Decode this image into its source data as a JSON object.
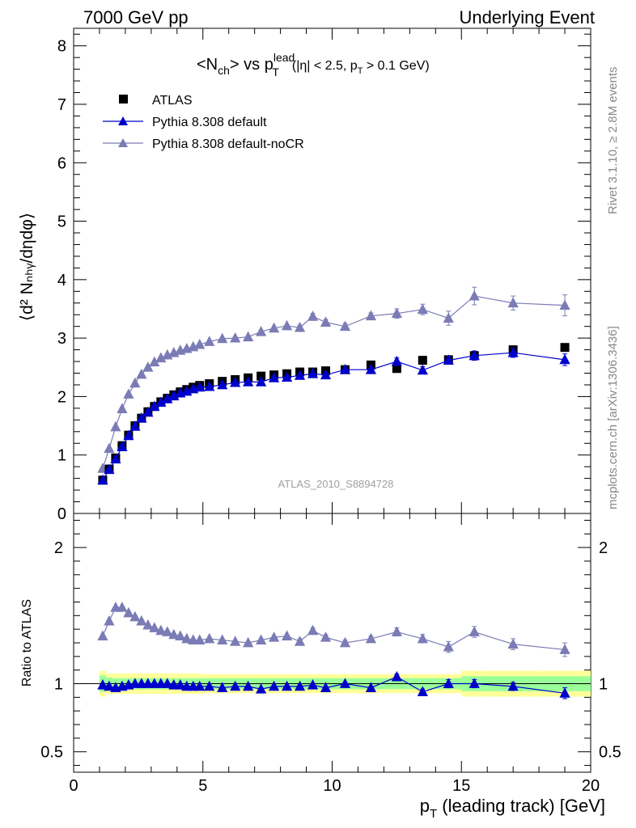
{
  "header": {
    "left": "7000 GeV pp",
    "right": "Underlying Event"
  },
  "side": {
    "rivet": "Rivet 3.1.10, ≥ 2.8M events",
    "mcplots": "mcplots.cern.ch [arXiv:1306.3436]"
  },
  "watermark": "ATLAS_2010_S8894728",
  "title": {
    "main": "<N",
    "sub_ch": "ch",
    "vs": "> vs p",
    "sup_lead": "lead",
    "sub_T": "T",
    "cuts": "(|η| < 2.5, p",
    "cuts_sub": "T",
    "cuts_end": " > 0.1 GeV)"
  },
  "legend": [
    {
      "label": "ATLAS"
    },
    {
      "label": "Pythia 8.308 default"
    },
    {
      "label": "Pythia 8.308 default-noCR"
    }
  ],
  "y_label_main": "⟨d² Nₙₕᵧ/dηdφ⟩",
  "y_label_ratio": "Ratio to ATLAS",
  "x_label": "p",
  "x_label_sub": "T",
  "x_label_rest": " (leading track) [GeV]",
  "colors": {
    "atlas": "#000000",
    "default": "#0000cc",
    "nocr": "#7b7bb5",
    "band_inner": "#99ff99",
    "band_outer": "#ffff99"
  },
  "chart_data": {
    "type": "scatter",
    "xlim": [
      0,
      20
    ],
    "main": {
      "ylim": [
        0,
        8.3
      ],
      "yticks": [
        0,
        1,
        2,
        3,
        4,
        5,
        6,
        7,
        8
      ],
      "x": [
        1.125,
        1.375,
        1.625,
        1.875,
        2.125,
        2.375,
        2.625,
        2.875,
        3.125,
        3.375,
        3.625,
        3.875,
        4.125,
        4.375,
        4.625,
        4.875,
        5.25,
        5.75,
        6.25,
        6.75,
        7.25,
        7.75,
        8.25,
        8.75,
        9.25,
        9.75,
        10.5,
        11.5,
        12.5,
        13.5,
        14.5,
        15.5,
        17.0,
        19.0
      ],
      "series": [
        {
          "name": "ATLAS",
          "values": [
            0.57,
            0.76,
            0.95,
            1.16,
            1.34,
            1.5,
            1.63,
            1.74,
            1.83,
            1.91,
            1.97,
            2.03,
            2.08,
            2.12,
            2.16,
            2.19,
            2.22,
            2.26,
            2.29,
            2.32,
            2.35,
            2.37,
            2.39,
            2.42,
            2.42,
            2.44,
            2.46,
            2.54,
            2.48,
            2.62,
            2.63,
            2.7,
            2.8,
            2.84
          ]
        },
        {
          "name": "Pythia 8.308 default",
          "values": [
            0.57,
            0.75,
            0.93,
            1.14,
            1.33,
            1.49,
            1.63,
            1.73,
            1.83,
            1.9,
            1.96,
            2.01,
            2.06,
            2.09,
            2.13,
            2.16,
            2.17,
            2.2,
            2.24,
            2.25,
            2.25,
            2.32,
            2.33,
            2.36,
            2.39,
            2.37,
            2.46,
            2.46,
            2.6,
            2.45,
            2.62,
            2.7,
            2.75,
            2.63
          ]
        },
        {
          "name": "Pythia 8.308 default-noCR",
          "values": [
            0.77,
            1.11,
            1.48,
            1.79,
            2.04,
            2.23,
            2.38,
            2.5,
            2.59,
            2.66,
            2.71,
            2.75,
            2.79,
            2.82,
            2.85,
            2.89,
            2.94,
            2.99,
            3.0,
            3.02,
            3.11,
            3.17,
            3.21,
            3.18,
            3.37,
            3.27,
            3.2,
            3.38,
            3.42,
            3.49,
            3.34,
            3.72,
            3.6,
            3.56
          ]
        }
      ],
      "errors_default": [
        0,
        0,
        0,
        0,
        0,
        0,
        0,
        0,
        0,
        0,
        0,
        0,
        0,
        0,
        0,
        0,
        0,
        0,
        0,
        0,
        0,
        0,
        0,
        0,
        0,
        0,
        0,
        0,
        0.06,
        0.06,
        0.06,
        0.08,
        0.08,
        0.1
      ],
      "errors_nocr": [
        0,
        0,
        0,
        0,
        0,
        0,
        0,
        0,
        0,
        0,
        0,
        0,
        0,
        0,
        0,
        0,
        0,
        0,
        0,
        0,
        0,
        0,
        0,
        0.04,
        0.05,
        0.05,
        0.05,
        0.05,
        0.08,
        0.09,
        0.12,
        0.15,
        0.12,
        0.18
      ]
    },
    "ratio": {
      "ylim": [
        0.35,
        2.25
      ],
      "yticks": [
        0.5,
        1,
        2
      ],
      "series": [
        {
          "name": "Pythia 8.308 default",
          "values": [
            0.99,
            0.98,
            0.97,
            0.98,
            0.99,
            1.0,
            1.0,
            1.0,
            1.0,
            1.0,
            1.0,
            0.99,
            0.99,
            0.98,
            0.98,
            0.98,
            0.98,
            0.97,
            0.98,
            0.98,
            0.96,
            0.98,
            0.98,
            0.98,
            0.99,
            0.97,
            1.0,
            0.97,
            1.05,
            0.94,
            1.0,
            1.0,
            0.98,
            0.93
          ]
        },
        {
          "name": "Pythia 8.308 default-noCR",
          "values": [
            1.35,
            1.46,
            1.56,
            1.56,
            1.52,
            1.49,
            1.46,
            1.43,
            1.41,
            1.39,
            1.38,
            1.36,
            1.35,
            1.33,
            1.32,
            1.32,
            1.33,
            1.32,
            1.31,
            1.3,
            1.32,
            1.34,
            1.35,
            1.31,
            1.39,
            1.34,
            1.3,
            1.33,
            1.38,
            1.33,
            1.27,
            1.38,
            1.29,
            1.25
          ]
        }
      ],
      "errors_default": [
        0,
        0,
        0,
        0,
        0,
        0,
        0,
        0,
        0,
        0,
        0,
        0,
        0,
        0,
        0,
        0,
        0,
        0,
        0,
        0,
        0,
        0,
        0,
        0,
        0,
        0,
        0,
        0,
        0.02,
        0.02,
        0.03,
        0.03,
        0.03,
        0.04
      ],
      "errors_nocr": [
        0,
        0,
        0,
        0,
        0,
        0,
        0,
        0,
        0,
        0,
        0,
        0,
        0,
        0,
        0,
        0,
        0,
        0,
        0,
        0,
        0,
        0,
        0,
        0.02,
        0.02,
        0.02,
        0.02,
        0.02,
        0.03,
        0.03,
        0.04,
        0.04,
        0.04,
        0.05
      ],
      "band_edges": [
        1.0,
        1.25,
        1.5,
        1.75,
        2.0,
        2.25,
        2.5,
        2.75,
        3.0,
        3.25,
        3.5,
        3.75,
        4.0,
        4.25,
        4.5,
        4.75,
        5.0,
        5.5,
        6.0,
        6.5,
        7.0,
        7.5,
        8.0,
        8.5,
        9.0,
        9.5,
        10.0,
        11.0,
        12.0,
        13.0,
        14.0,
        15.0,
        16.0,
        18.0,
        20.0
      ],
      "band_inner": [
        0.06,
        0.045,
        0.04,
        0.04,
        0.04,
        0.04,
        0.04,
        0.04,
        0.04,
        0.04,
        0.04,
        0.04,
        0.04,
        0.04,
        0.04,
        0.04,
        0.04,
        0.04,
        0.04,
        0.04,
        0.04,
        0.04,
        0.04,
        0.04,
        0.04,
        0.04,
        0.04,
        0.04,
        0.04,
        0.04,
        0.04,
        0.055,
        0.055,
        0.055
      ],
      "band_outer": [
        0.095,
        0.075,
        0.075,
        0.075,
        0.075,
        0.075,
        0.075,
        0.075,
        0.075,
        0.075,
        0.075,
        0.075,
        0.075,
        0.075,
        0.075,
        0.075,
        0.07,
        0.07,
        0.07,
        0.07,
        0.07,
        0.07,
        0.07,
        0.07,
        0.07,
        0.07,
        0.07,
        0.07,
        0.07,
        0.07,
        0.07,
        0.095,
        0.095,
        0.095
      ]
    },
    "xticks": [
      0,
      5,
      10,
      15,
      20
    ]
  }
}
